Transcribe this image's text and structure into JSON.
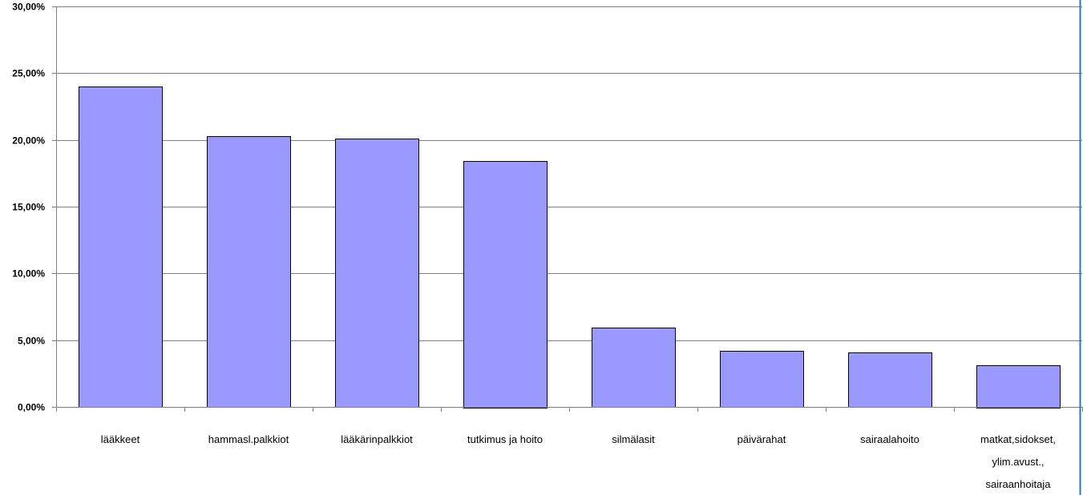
{
  "chart_data": {
    "type": "bar",
    "title": "",
    "xlabel": "",
    "ylabel": "",
    "categories": [
      [
        "lääkkeet"
      ],
      [
        "hammasl.palkkiot"
      ],
      [
        "lääkärinpalkkiot"
      ],
      [
        "tutkimus ja hoito"
      ],
      [
        "silmälasit"
      ],
      [
        "päivärahat"
      ],
      [
        "sairaalahoito"
      ],
      [
        "matkat,sidokset,",
        "ylim.avust.,",
        "sairaanhoitaja"
      ]
    ],
    "values": [
      24.0,
      20.3,
      20.1,
      18.45,
      5.95,
      4.2,
      4.1,
      3.15
    ],
    "ylim": [
      0,
      30
    ],
    "yticks": [
      0,
      5,
      10,
      15,
      20,
      25,
      30
    ],
    "ytick_labels": [
      "0,00%",
      "5,00%",
      "10,00%",
      "15,00%",
      "20,00%",
      "25,00%",
      "30,00%"
    ],
    "grid": true,
    "colors": {
      "bar_fill": "#9999ff",
      "bar_stroke": "#000000",
      "grid": "#808080",
      "right_edge": "#2e75b6"
    }
  }
}
